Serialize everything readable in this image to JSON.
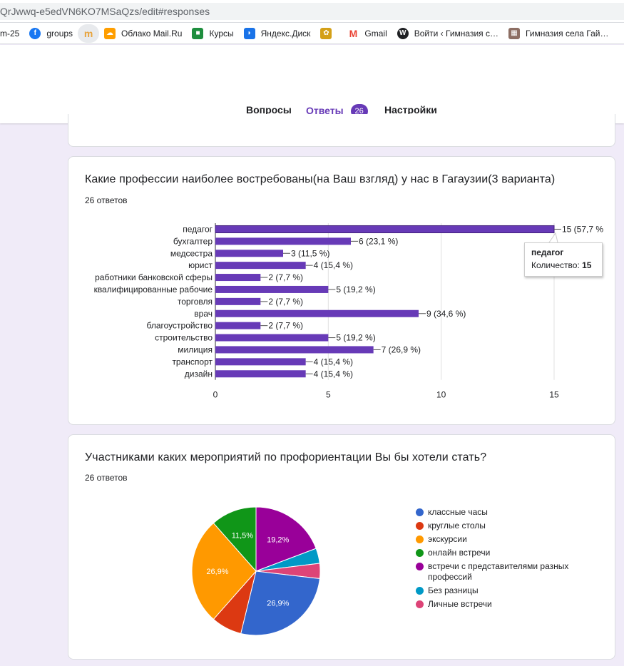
{
  "browser": {
    "url": "QrJwwq-e5edVN6KO7MSaQzs/edit#responses",
    "bookmarks": [
      {
        "label": "m-25",
        "icon": "none",
        "color": ""
      },
      {
        "label": "groups",
        "icon": "facebook-icon",
        "color": "#1877f2"
      },
      {
        "label": "",
        "icon": "m-app-icon",
        "color": "#e8a33c"
      },
      {
        "label": "Облако Mail.Ru",
        "icon": "mail-cloud-icon",
        "color": "#ff9e00"
      },
      {
        "label": "Курсы",
        "icon": "classroom-icon",
        "color": "#1e8e3e"
      },
      {
        "label": "Яндекс.Диск",
        "icon": "yandex-disk-icon",
        "color": "#1a73e8"
      },
      {
        "label": "",
        "icon": "emblem-icon",
        "color": "#d4a017"
      },
      {
        "label": "Gmail",
        "icon": "gmail-icon",
        "color": "#ea4335"
      },
      {
        "label": "Войти ‹ Гимназия с…",
        "icon": "wordpress-icon",
        "color": "#202124"
      },
      {
        "label": "Гимназия села Гай…",
        "icon": "image-icon",
        "color": "#8d6e63"
      }
    ]
  },
  "tabs": {
    "questions": "Вопросы",
    "responses": "Ответы",
    "responses_count": "26",
    "settings": "Настройки"
  },
  "q1": {
    "title": "Какие профессии наиболее востребованы(на Ваш взгляд) у нас в Гагаузии(3 варианта)",
    "count": "26 ответов",
    "tooltip": {
      "category": "педагог",
      "label": "Количество:",
      "value": "15"
    }
  },
  "q2": {
    "title": "Участниками каких мероприятий по профориентации Вы бы хотели стать?",
    "count": "26 ответов"
  },
  "chart_data": [
    {
      "type": "bar",
      "orientation": "horizontal",
      "categories": [
        "педагог",
        "бухгалтер",
        "медсестра",
        "юрист",
        "работники банковской сферы",
        "квалифицированные рабочие",
        "торговля",
        "врач",
        "благоустройство",
        "строительство",
        "милиция",
        "транспорт",
        "дизайн"
      ],
      "values": [
        15,
        6,
        3,
        4,
        2,
        5,
        2,
        9,
        2,
        5,
        7,
        4,
        4
      ],
      "data_labels": [
        "15 (57,7 %",
        "6 (23,1 %)",
        "3 (11,5 %)",
        "4 (15,4 %)",
        "2 (7,7 %)",
        "5 (19,2 %)",
        "2 (7,7 %)",
        "9 (34,6 %)",
        "2 (7,7 %)",
        "5 (19,2 %)",
        "7 (26,9 %)",
        "4 (15,4 %)",
        "4 (15,4 %)"
      ],
      "xlim": [
        0,
        15
      ],
      "xticks": [
        "0",
        "5",
        "10",
        "15"
      ],
      "color": "#673ab7",
      "grid": true
    },
    {
      "type": "pie",
      "labels": [
        "классные часы",
        "круглые столы",
        "экскурсии",
        "онлайн встречи",
        "встречи с представителями разных профессий",
        "Без разницы",
        "Личные встречи"
      ],
      "values": [
        26.9,
        7.7,
        26.9,
        11.5,
        19.2,
        3.8,
        3.8
      ],
      "slice_labels": [
        "26,9%",
        "",
        "26,9%",
        "11,5%",
        "19,2%",
        "",
        ""
      ],
      "colors": [
        "#3366cc",
        "#dc3912",
        "#ff9900",
        "#109618",
        "#990099",
        "#0099c6",
        "#dd4477"
      ],
      "legend_position": "right"
    }
  ]
}
